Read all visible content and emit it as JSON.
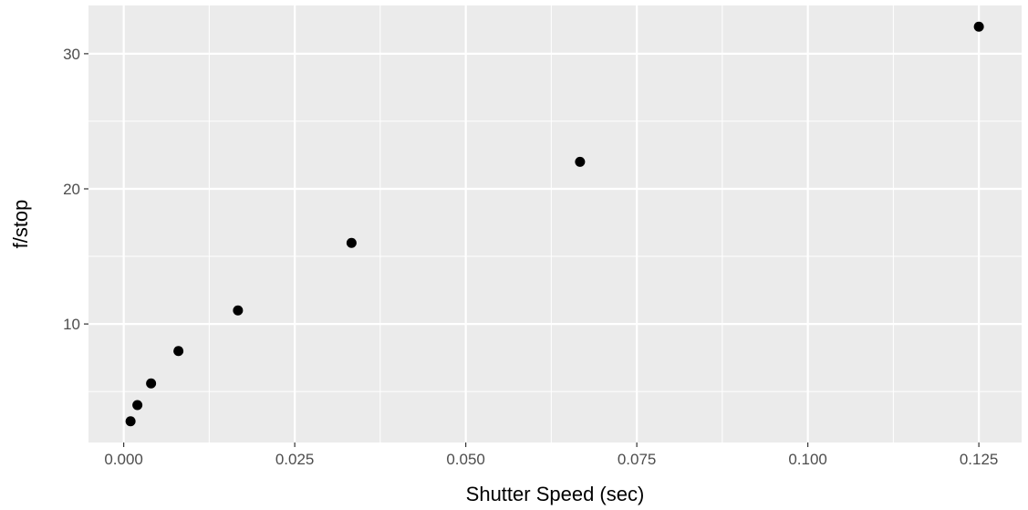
{
  "chart_data": {
    "type": "scatter",
    "xlabel": "Shutter Speed (sec)",
    "ylabel": "f/stop",
    "xlim": [
      -0.00515,
      0.13125
    ],
    "ylim": [
      1.23,
      33.57
    ],
    "x_ticks": [
      0.0,
      0.025,
      0.05,
      0.075,
      0.1,
      0.125
    ],
    "x_tick_labels": [
      "0.000",
      "0.025",
      "0.050",
      "0.075",
      "0.100",
      "0.125"
    ],
    "y_ticks": [
      10,
      20,
      30
    ],
    "y_tick_labels": [
      "10",
      "20",
      "30"
    ],
    "grid": true,
    "legend": "none",
    "points": [
      {
        "x": 0.001,
        "y": 2.8
      },
      {
        "x": 0.002,
        "y": 4.0
      },
      {
        "x": 0.004,
        "y": 5.6
      },
      {
        "x": 0.008,
        "y": 8.0
      },
      {
        "x": 0.0167,
        "y": 11.0
      },
      {
        "x": 0.0333,
        "y": 16.0
      },
      {
        "x": 0.0667,
        "y": 22.0
      },
      {
        "x": 0.125,
        "y": 32.0
      }
    ]
  },
  "colors": {
    "panel": "#ebebeb",
    "grid_major": "#ffffff",
    "grid_minor": "#f5f5f5",
    "point": "#000000",
    "tick": "#333333"
  }
}
